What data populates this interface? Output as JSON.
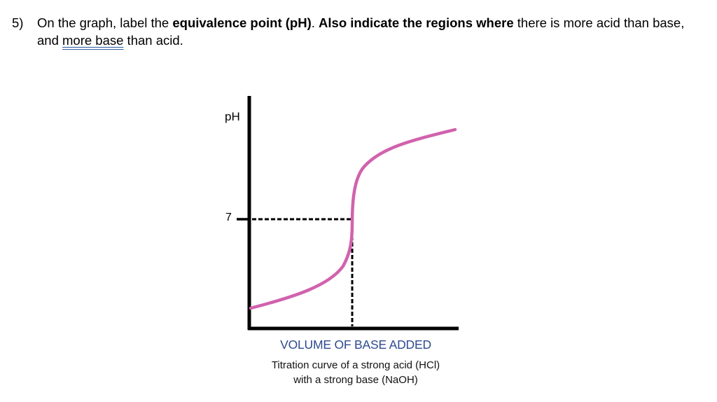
{
  "question": {
    "number": "5)",
    "part1": "On the graph, label the ",
    "bold1": "equivalence point (pH)",
    "part2": ". ",
    "bold2": "Also indicate the regions where",
    "part3": " there is more acid than base, and ",
    "underlined": "more base",
    "part4": " than acid."
  },
  "figure": {
    "ylabel": "pH",
    "xlabel": "VOLUME OF BASE ADDED",
    "caption_line1": "Titration curve of a strong acid (HCl)",
    "caption_line2": "with a strong base (NaOH)",
    "colors": {
      "curve": "#d162ad",
      "axis": "#000000",
      "xlabel": "#2e4a8e"
    }
  },
  "chart_data": {
    "type": "line",
    "xlabel": "VOLUME OF BASE ADDED",
    "ylabel": "pH",
    "yticks": [
      7
    ],
    "grid": false,
    "legend": "none",
    "equivalence_point": {
      "y": 7
    }
  }
}
